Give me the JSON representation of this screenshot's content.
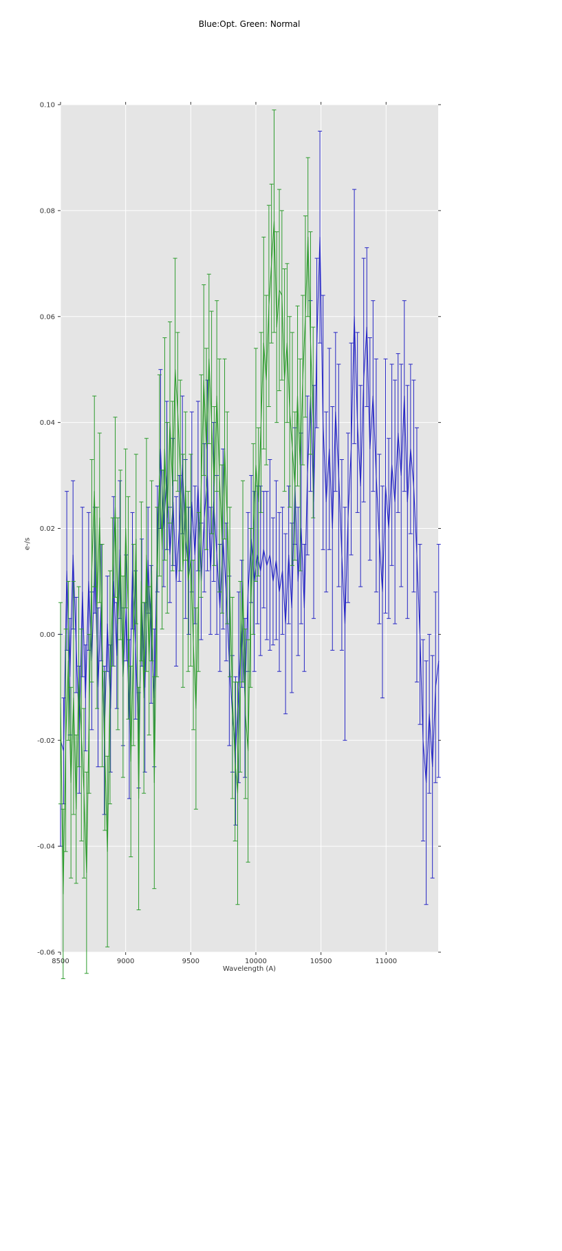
{
  "chart_data": {
    "type": "line",
    "title": "Blue:Opt. Green: Normal",
    "xlabel": "Wavelength (A)",
    "ylabel": "e-/s",
    "xlim": [
      8500,
      11400
    ],
    "ylim": [
      -0.06,
      0.1
    ],
    "xticks": [
      8500,
      9000,
      9500,
      10000,
      10500,
      11000
    ],
    "xtick_labels": [
      "8500",
      "9000",
      "9500",
      "10000",
      "10500",
      "11000"
    ],
    "yticks": [
      -0.06,
      -0.04,
      -0.02,
      0.0,
      0.02,
      0.04,
      0.06,
      0.08,
      0.1
    ],
    "ytick_labels": [
      "-0.06",
      "-0.04",
      "-0.02",
      "0.00",
      "0.02",
      "0.04",
      "0.06",
      "0.08",
      "0.10"
    ],
    "grid": true,
    "legend": "none",
    "plot_bg_color": "#e5e5e5",
    "grid_color": "#ffffff",
    "tick_color": "#333333",
    "label_color": "#333333",
    "series": [
      {
        "id": "blue-opt",
        "name": "Opt.",
        "color": "#2525c4",
        "style": "errorbar-line",
        "x": [
          8500,
          8524,
          8548,
          8572,
          8596,
          8620,
          8644,
          8668,
          8692,
          8716,
          8740,
          8764,
          8788,
          8812,
          8836,
          8860,
          8884,
          8908,
          8932,
          8956,
          8980,
          9004,
          9028,
          9052,
          9076,
          9100,
          9124,
          9148,
          9172,
          9196,
          9220,
          9244,
          9268,
          9292,
          9316,
          9340,
          9364,
          9388,
          9412,
          9436,
          9460,
          9484,
          9508,
          9532,
          9556,
          9580,
          9604,
          9628,
          9652,
          9676,
          9700,
          9724,
          9748,
          9772,
          9796,
          9820,
          9844,
          9868,
          9892,
          9916,
          9940,
          9964,
          9988,
          10012,
          10036,
          10060,
          10084,
          10108,
          10132,
          10156,
          10180,
          10204,
          10228,
          10252,
          10276,
          10300,
          10324,
          10348,
          10372,
          10396,
          10420,
          10444,
          10468,
          10492,
          10516,
          10540,
          10564,
          10588,
          10612,
          10636,
          10660,
          10684,
          10708,
          10732,
          10756,
          10780,
          10804,
          10828,
          10852,
          10876,
          10900,
          10924,
          10948,
          10972,
          10996,
          11020,
          11044,
          11068,
          11092,
          11116,
          11140,
          11164,
          11188,
          11212,
          11236,
          11260,
          11284,
          11308,
          11332,
          11356,
          11380,
          11404
        ],
        "y": [
          -0.02,
          -0.022,
          0.012,
          -0.008,
          0.015,
          -0.002,
          -0.018,
          0.008,
          -0.012,
          0.01,
          -0.005,
          0.014,
          -0.01,
          0.006,
          -0.02,
          0.002,
          -0.014,
          0.01,
          -0.004,
          0.016,
          -0.008,
          0.005,
          -0.016,
          0.012,
          -0.002,
          -0.02,
          0.006,
          -0.01,
          0.014,
          0.0,
          -0.012,
          0.018,
          0.035,
          0.02,
          0.03,
          0.015,
          0.025,
          0.01,
          0.02,
          0.032,
          0.018,
          0.012,
          0.025,
          0.015,
          0.028,
          0.01,
          0.022,
          0.03,
          0.012,
          0.025,
          0.015,
          0.005,
          0.018,
          0.008,
          -0.005,
          -0.015,
          -0.022,
          -0.01,
          0.002,
          -0.012,
          0.008,
          0.018,
          0.01,
          0.015,
          0.012,
          0.016,
          0.013,
          0.015,
          0.01,
          0.014,
          0.008,
          0.012,
          0.002,
          0.015,
          0.005,
          0.028,
          0.01,
          0.02,
          0.005,
          0.03,
          0.045,
          0.025,
          0.055,
          0.075,
          0.04,
          0.025,
          0.035,
          0.02,
          0.042,
          0.03,
          0.015,
          0.002,
          0.022,
          0.035,
          0.06,
          0.04,
          0.028,
          0.048,
          0.058,
          0.035,
          0.045,
          0.03,
          0.018,
          0.008,
          0.028,
          0.02,
          0.032,
          0.025,
          0.038,
          0.03,
          0.045,
          0.025,
          0.035,
          0.028,
          0.015,
          0.0,
          -0.02,
          -0.028,
          -0.015,
          -0.025,
          -0.01,
          -0.005
        ],
        "yerr": [
          0.02,
          0.01,
          0.015,
          0.011,
          0.014,
          0.009,
          0.012,
          0.016,
          0.01,
          0.013,
          0.013,
          0.01,
          0.015,
          0.011,
          0.014,
          0.009,
          0.012,
          0.016,
          0.01,
          0.013,
          0.013,
          0.01,
          0.015,
          0.011,
          0.014,
          0.009,
          0.012,
          0.016,
          0.01,
          0.013,
          0.013,
          0.01,
          0.015,
          0.011,
          0.014,
          0.009,
          0.012,
          0.016,
          0.01,
          0.013,
          0.015,
          0.012,
          0.017,
          0.013,
          0.016,
          0.011,
          0.014,
          0.018,
          0.012,
          0.015,
          0.015,
          0.012,
          0.017,
          0.013,
          0.016,
          0.011,
          0.014,
          0.018,
          0.012,
          0.015,
          0.015,
          0.012,
          0.017,
          0.013,
          0.016,
          0.011,
          0.014,
          0.018,
          0.012,
          0.015,
          0.015,
          0.012,
          0.017,
          0.013,
          0.016,
          0.011,
          0.014,
          0.018,
          0.012,
          0.015,
          0.018,
          0.022,
          0.016,
          0.02,
          0.024,
          0.017,
          0.019,
          0.023,
          0.015,
          0.021,
          0.018,
          0.022,
          0.016,
          0.02,
          0.024,
          0.017,
          0.019,
          0.023,
          0.015,
          0.021,
          0.018,
          0.022,
          0.016,
          0.02,
          0.024,
          0.017,
          0.019,
          0.023,
          0.015,
          0.021,
          0.018,
          0.022,
          0.016,
          0.02,
          0.024,
          0.017,
          0.019,
          0.023,
          0.015,
          0.021,
          0.018,
          0.022
        ]
      },
      {
        "id": "green-normal",
        "name": "Normal",
        "color": "#2d9b2d",
        "style": "errorbar-line",
        "x": [
          8500,
          8520,
          8540,
          8560,
          8580,
          8600,
          8620,
          8640,
          8660,
          8680,
          8700,
          8720,
          8740,
          8760,
          8780,
          8800,
          8820,
          8840,
          8860,
          8880,
          8900,
          8920,
          8940,
          8960,
          8980,
          9000,
          9020,
          9040,
          9060,
          9080,
          9100,
          9120,
          9140,
          9160,
          9180,
          9200,
          9220,
          9240,
          9260,
          9280,
          9300,
          9320,
          9340,
          9360,
          9380,
          9400,
          9420,
          9440,
          9460,
          9480,
          9500,
          9520,
          9540,
          9560,
          9580,
          9600,
          9620,
          9640,
          9660,
          9680,
          9700,
          9720,
          9740,
          9760,
          9780,
          9800,
          9820,
          9840,
          9860,
          9880,
          9900,
          9920,
          9940,
          9960,
          9980,
          10000,
          10020,
          10040,
          10060,
          10080,
          10100,
          10120,
          10140,
          10160,
          10180,
          10200,
          10220,
          10240,
          10260,
          10280,
          10300,
          10320,
          10340,
          10360,
          10380,
          10400,
          10420,
          10440
        ],
        "y": [
          -0.013,
          -0.049,
          -0.02,
          -0.005,
          -0.028,
          -0.012,
          -0.033,
          -0.008,
          -0.019,
          -0.03,
          -0.045,
          -0.015,
          0.012,
          0.027,
          0.005,
          0.022,
          -0.004,
          -0.022,
          -0.041,
          -0.01,
          0.008,
          0.024,
          0.002,
          0.015,
          -0.008,
          0.02,
          0.005,
          -0.024,
          -0.002,
          0.018,
          -0.031,
          0.01,
          -0.012,
          0.015,
          -0.005,
          0.012,
          -0.028,
          0.008,
          0.03,
          0.016,
          0.035,
          0.022,
          0.04,
          0.028,
          0.05,
          0.042,
          0.03,
          0.012,
          0.028,
          0.01,
          0.014,
          -0.002,
          -0.014,
          0.008,
          0.028,
          0.048,
          0.035,
          0.052,
          0.04,
          0.028,
          0.045,
          0.03,
          0.018,
          0.035,
          0.022,
          0.008,
          -0.012,
          -0.024,
          -0.03,
          -0.008,
          0.01,
          -0.015,
          -0.022,
          0.005,
          0.018,
          0.032,
          0.025,
          0.04,
          0.055,
          0.048,
          0.062,
          0.07,
          0.078,
          0.058,
          0.065,
          0.064,
          0.048,
          0.055,
          0.042,
          0.035,
          0.028,
          0.045,
          0.032,
          0.048,
          0.06,
          0.075,
          0.055,
          0.04
        ],
        "yerr": [
          0.019,
          0.016,
          0.021,
          0.015,
          0.018,
          0.022,
          0.014,
          0.017,
          0.02,
          0.016,
          0.019,
          0.015,
          0.021,
          0.018,
          0.019,
          0.016,
          0.021,
          0.015,
          0.018,
          0.022,
          0.014,
          0.017,
          0.02,
          0.016,
          0.019,
          0.015,
          0.021,
          0.018,
          0.019,
          0.016,
          0.021,
          0.015,
          0.018,
          0.022,
          0.014,
          0.017,
          0.02,
          0.016,
          0.019,
          0.015,
          0.021,
          0.018,
          0.019,
          0.016,
          0.021,
          0.015,
          0.018,
          0.022,
          0.014,
          0.017,
          0.02,
          0.016,
          0.019,
          0.015,
          0.021,
          0.018,
          0.019,
          0.016,
          0.021,
          0.015,
          0.018,
          0.022,
          0.014,
          0.017,
          0.02,
          0.016,
          0.019,
          0.015,
          0.021,
          0.018,
          0.019,
          0.016,
          0.021,
          0.015,
          0.018,
          0.022,
          0.014,
          0.017,
          0.02,
          0.016,
          0.019,
          0.015,
          0.021,
          0.018,
          0.019,
          0.016,
          0.021,
          0.015,
          0.018,
          0.022,
          0.014,
          0.017,
          0.02,
          0.016,
          0.019,
          0.015,
          0.021,
          0.018
        ]
      }
    ]
  }
}
